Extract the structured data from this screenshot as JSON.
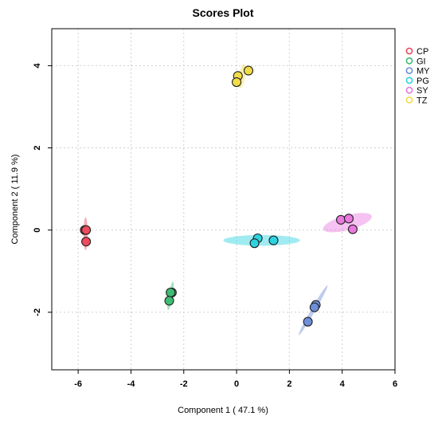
{
  "chart_data": {
    "type": "scatter",
    "title": "Scores Plot",
    "xlabel": "Component 1 ( 47.1 %)",
    "ylabel": "Component 2 ( 11.9 %)",
    "xlim": [
      -7,
      6
    ],
    "ylim": [
      -3.4,
      4.9
    ],
    "xticks": [
      -6,
      -4,
      -2,
      0,
      2,
      4,
      6
    ],
    "yticks": [
      -2,
      0,
      2,
      4
    ],
    "grid": true,
    "legend_position": "right",
    "series": [
      {
        "name": "CP",
        "color": "#ee4b5f",
        "points": [
          [
            -5.75,
            0.0
          ],
          [
            -5.7,
            0.0
          ],
          [
            -5.7,
            -0.28
          ]
        ],
        "ellipse": {
          "center": [
            -5.72,
            -0.09
          ],
          "rx": 0.08,
          "ry": 0.4,
          "angle_deg": 0
        }
      },
      {
        "name": "GI",
        "color": "#3dbd73",
        "points": [
          [
            -2.45,
            -1.52
          ],
          [
            -2.5,
            -1.52
          ],
          [
            -2.55,
            -1.72
          ]
        ],
        "ellipse": {
          "center": [
            -2.5,
            -1.6
          ],
          "rx": 0.08,
          "ry": 0.35,
          "angle_deg": 10
        }
      },
      {
        "name": "MY",
        "color": "#6e8fd9",
        "points": [
          [
            3.0,
            -1.82
          ],
          [
            2.95,
            -1.88
          ],
          [
            2.7,
            -2.23
          ]
        ],
        "ellipse": {
          "center": [
            2.9,
            -1.95
          ],
          "rx": 0.08,
          "ry": 0.7,
          "angle_deg": 30
        }
      },
      {
        "name": "PG",
        "color": "#2dd3e0",
        "points": [
          [
            0.8,
            -0.2
          ],
          [
            0.68,
            -0.32
          ],
          [
            1.4,
            -0.25
          ]
        ],
        "ellipse": {
          "center": [
            0.95,
            -0.25
          ],
          "rx": 1.45,
          "ry": 0.13,
          "angle_deg": 0
        }
      },
      {
        "name": "SY",
        "color": "#e978df",
        "points": [
          [
            3.95,
            0.25
          ],
          [
            4.25,
            0.28
          ],
          [
            4.4,
            0.02
          ]
        ],
        "ellipse": {
          "center": [
            4.2,
            0.18
          ],
          "rx": 0.95,
          "ry": 0.18,
          "angle_deg": -15
        }
      },
      {
        "name": "TZ",
        "color": "#f2dc4a",
        "points": [
          [
            0.05,
            3.75
          ],
          [
            0.0,
            3.6
          ],
          [
            0.45,
            3.88
          ]
        ],
        "ellipse": {
          "center": [
            0.2,
            3.74
          ],
          "rx": 0.12,
          "ry": 0.3,
          "angle_deg": 10
        }
      }
    ]
  }
}
